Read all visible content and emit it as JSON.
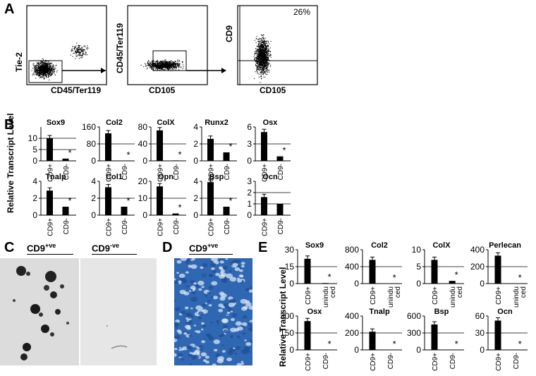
{
  "panels": {
    "A": "A",
    "B": "B",
    "C": "C",
    "D": "D",
    "E": "E"
  },
  "flow": {
    "plot1": {
      "ylabel": "Tie-2",
      "xlabel": "CD45/Ter119"
    },
    "plot2": {
      "ylabel": "CD45/Ter119",
      "xlabel": "CD105"
    },
    "plot3": {
      "ylabel": "CD9",
      "xlabel": "CD105",
      "gate_pct": "26%"
    }
  },
  "panelB": {
    "ylabel": "Relative Transcript Level",
    "categories": [
      "CD9+",
      "CD9-"
    ],
    "charts": [
      {
        "title": "Sox9",
        "ticks": [
          "10",
          "5",
          "0"
        ],
        "ymax": 15,
        "values": [
          10,
          1
        ],
        "star": true
      },
      {
        "title": "Col2",
        "ticks": [
          "160",
          "80",
          "0"
        ],
        "ymax": 160,
        "values": [
          130,
          0
        ],
        "star": true
      },
      {
        "title": "ColX",
        "ticks": [
          "80",
          "40",
          "0"
        ],
        "ymax": 80,
        "values": [
          72,
          1
        ],
        "star": true
      },
      {
        "title": "Runx2",
        "ticks": [
          "4",
          "2",
          "0"
        ],
        "ymax": 4,
        "values": [
          2.6,
          1
        ],
        "star": true
      },
      {
        "title": "Osx",
        "ticks": [
          "6",
          "3",
          "0"
        ],
        "ymax": 6,
        "values": [
          5.1,
          0.8
        ],
        "star": true
      },
      {
        "title": "Tnalp",
        "ticks": [
          "4",
          "2",
          "0"
        ],
        "ymax": 4,
        "values": [
          2.9,
          1
        ],
        "star": true
      },
      {
        "title": "Col1",
        "ticks": [
          "4",
          "2",
          "0"
        ],
        "ymax": 4,
        "values": [
          3.3,
          1
        ],
        "star": true
      },
      {
        "title": "Opn",
        "ticks": [
          "20",
          "10",
          "0"
        ],
        "ymax": 20,
        "values": [
          17,
          1
        ],
        "star": true
      },
      {
        "title": "Bsp",
        "ticks": [
          "4",
          "2",
          "0"
        ],
        "ymax": 4,
        "values": [
          3.9,
          1
        ],
        "star": true
      },
      {
        "title": "Ocn",
        "ticks": [
          "3",
          "2",
          "1",
          "0"
        ],
        "ymax": 3,
        "values": [
          1.6,
          1
        ],
        "star": false
      }
    ]
  },
  "panelC": {
    "left": "CD9",
    "left_sup": "+ve",
    "right": "CD9",
    "right_sup": "-ve"
  },
  "panelD": {
    "label": "CD9",
    "sup": "+ve"
  },
  "panelE": {
    "ylabel": "Relative Transcript Level",
    "charts": [
      {
        "title": "Sox9",
        "ticks": [
          "30",
          "15",
          "0"
        ],
        "ymax": 30,
        "values": [
          22,
          0.5
        ],
        "cats": [
          "CD9+",
          "unindu ced"
        ]
      },
      {
        "title": "Col2",
        "ticks": [
          "800",
          "400",
          "0"
        ],
        "ymax": 800,
        "values": [
          560,
          0
        ],
        "cats": [
          "CD9+",
          "unindu ced"
        ]
      },
      {
        "title": "ColX",
        "ticks": [
          "10",
          "5",
          "0"
        ],
        "ymax": 10,
        "values": [
          7,
          0.8
        ],
        "cats": [
          "CD9+",
          "unindu ced"
        ]
      },
      {
        "title": "Perlecan",
        "ticks": [
          "400",
          "200",
          "0"
        ],
        "ymax": 400,
        "values": [
          330,
          0
        ],
        "cats": [
          "CD9+",
          "unindu ced"
        ]
      },
      {
        "title": "Osx",
        "ticks": [
          "300",
          "150",
          "0"
        ],
        "ymax": 300,
        "values": [
          255,
          0
        ],
        "cats": [
          "CD9+",
          "CD9-"
        ]
      },
      {
        "title": "Tnalp",
        "ticks": [
          "400",
          "200",
          "0"
        ],
        "ymax": 400,
        "values": [
          215,
          0
        ],
        "cats": [
          "CD9+",
          "CD9-"
        ]
      },
      {
        "title": "Bsp",
        "ticks": [
          "600",
          "300",
          "0"
        ],
        "ymax": 600,
        "values": [
          450,
          0
        ],
        "cats": [
          "CD9+",
          "CD9-"
        ]
      },
      {
        "title": "Ocn",
        "ticks": [
          "60",
          "30",
          "0"
        ],
        "ymax": 60,
        "values": [
          52,
          0
        ],
        "cats": [
          "CD9+",
          "CD9-"
        ]
      }
    ]
  },
  "colors": {
    "bar": "#000000",
    "stain": "#2f67b3"
  }
}
